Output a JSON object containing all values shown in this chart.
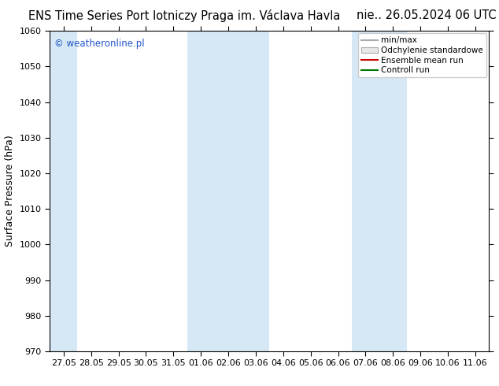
{
  "title_left": "ENS Time Series Port lotniczy Praga im. Václava Havla",
  "title_right": "nie.. 26.05.2024 06 UTC",
  "ylabel": "Surface Pressure (hPa)",
  "ylim": [
    970,
    1060
  ],
  "yticks": [
    970,
    980,
    990,
    1000,
    1010,
    1020,
    1030,
    1040,
    1050,
    1060
  ],
  "xtick_labels": [
    "27.05",
    "28.05",
    "29.05",
    "30.05",
    "31.05",
    "01.06",
    "02.06",
    "03.06",
    "04.06",
    "05.06",
    "06.06",
    "07.06",
    "08.06",
    "09.06",
    "10.06",
    "11.06"
  ],
  "watermark": "© weatheronline.pl",
  "legend_entries": [
    "min/max",
    "Odchylenie standardowe",
    "Ensemble mean run",
    "Controll run"
  ],
  "bg_color": "#ffffff",
  "plot_bg_color": "#ffffff",
  "shade_color": "#d6e8f5",
  "shaded_indices": [
    0,
    5,
    6,
    7,
    11,
    12
  ],
  "title_fontsize": 10.5,
  "axis_label_fontsize": 9,
  "tick_fontsize": 8,
  "watermark_color": "#2255cc",
  "n_columns": 16
}
